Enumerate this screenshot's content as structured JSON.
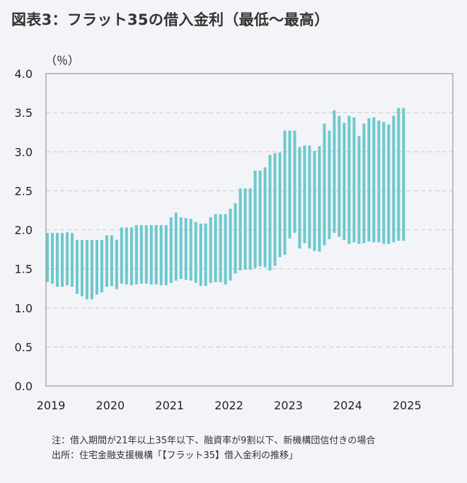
{
  "title": "図表3：フラット35の借入金利（最低〜最高）",
  "notes": {
    "note": "注：借入期間が21年以上35年以下、融資率が9割以下、新機構団信付きの場合",
    "source": "出所：住宅金融支援機構「【フラット35】借入金利の推移」"
  },
  "chart_data": {
    "type": "bar",
    "subtype": "floating-range",
    "title": "図表3：フラット35の借入金利（最低〜最高）",
    "ylabel": "（％）",
    "xlabel": "",
    "ylim": [
      0,
      4.0
    ],
    "yticks": [
      "0.0",
      "0.5",
      "1.0",
      "1.5",
      "2.0",
      "2.5",
      "3.0",
      "3.5",
      "4.0"
    ],
    "xticks": [
      "2019",
      "2020",
      "2021",
      "2022",
      "2023",
      "2024",
      "2025"
    ],
    "x_start": "2019-01",
    "x_end": "2025-01",
    "grid": true,
    "legend": "none",
    "bar_color": "#6cc9ce",
    "series": [
      {
        "name": "最低",
        "values": [
          1.33,
          1.31,
          1.27,
          1.27,
          1.29,
          1.27,
          1.18,
          1.15,
          1.11,
          1.11,
          1.17,
          1.2,
          1.27,
          1.28,
          1.24,
          1.31,
          1.3,
          1.29,
          1.3,
          1.31,
          1.31,
          1.3,
          1.3,
          1.29,
          1.29,
          1.32,
          1.35,
          1.37,
          1.36,
          1.35,
          1.32,
          1.28,
          1.28,
          1.32,
          1.33,
          1.33,
          1.3,
          1.35,
          1.44,
          1.48,
          1.49,
          1.49,
          1.51,
          1.53,
          1.52,
          1.48,
          1.54,
          1.65,
          1.68,
          1.89,
          1.96,
          1.76,
          1.83,
          1.76,
          1.73,
          1.72,
          1.8,
          1.88,
          1.96,
          1.91,
          1.87,
          1.82,
          1.84,
          1.82,
          1.83,
          1.85,
          1.84,
          1.84,
          1.82,
          1.82,
          1.84,
          1.86,
          1.86
        ]
      },
      {
        "name": "最高",
        "values": [
          1.96,
          1.96,
          1.96,
          1.96,
          1.97,
          1.96,
          1.87,
          1.87,
          1.87,
          1.87,
          1.87,
          1.87,
          1.93,
          1.93,
          1.87,
          2.03,
          2.03,
          2.03,
          2.06,
          2.06,
          2.06,
          2.06,
          2.06,
          2.06,
          2.06,
          2.16,
          2.22,
          2.16,
          2.15,
          2.14,
          2.1,
          2.08,
          2.08,
          2.16,
          2.2,
          2.2,
          2.2,
          2.27,
          2.34,
          2.53,
          2.53,
          2.53,
          2.76,
          2.76,
          2.8,
          2.96,
          2.98,
          2.99,
          3.27,
          3.27,
          3.27,
          3.06,
          3.08,
          3.08,
          3.01,
          3.07,
          3.36,
          3.27,
          3.53,
          3.46,
          3.37,
          3.46,
          3.44,
          3.2,
          3.36,
          3.43,
          3.44,
          3.4,
          3.38,
          3.35,
          3.46,
          3.56,
          3.56
        ]
      }
    ]
  }
}
